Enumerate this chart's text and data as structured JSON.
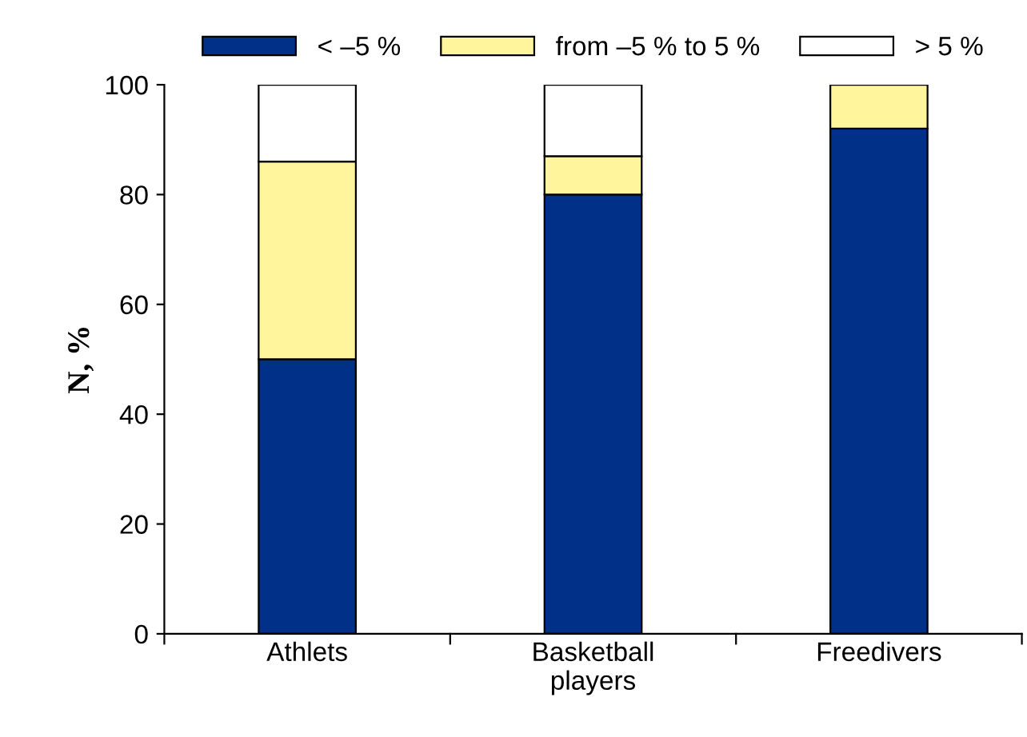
{
  "chart_data": {
    "type": "bar",
    "stacked": true,
    "ylabel": "N, %",
    "categories": [
      "Athlets",
      "Basketball\nplayers",
      "Freedivers"
    ],
    "series": [
      {
        "name": "< –5 %",
        "color": "#003087",
        "values": [
          50,
          80,
          92
        ]
      },
      {
        "name": "from –5 % to 5 %",
        "color": "#fff59d",
        "values": [
          36,
          7,
          8
        ]
      },
      {
        "name": "> 5 %",
        "color": "#ffffff",
        "values": [
          14,
          13,
          null
        ]
      }
    ],
    "ylim": [
      0,
      100
    ],
    "yticks": [
      0,
      20,
      40,
      60,
      80,
      100
    ],
    "grid": false,
    "legend": "top"
  }
}
